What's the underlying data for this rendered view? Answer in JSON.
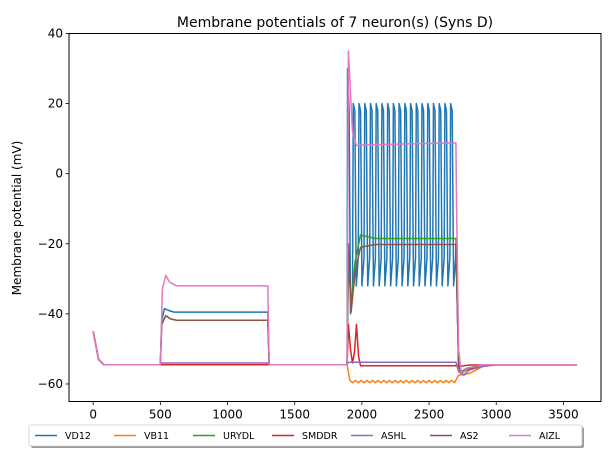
{
  "chart_data": {
    "type": "line",
    "title": "Membrane potentials of 7 neuron(s) (Syns D)",
    "xlabel": "",
    "ylabel": "Membrane potential (mV)",
    "xlim": [
      -180,
      3780
    ],
    "ylim": [
      -65,
      40
    ],
    "xticks": [
      0,
      500,
      1000,
      1500,
      2000,
      2500,
      3000,
      3500
    ],
    "yticks": [
      -60,
      -40,
      -20,
      0,
      20,
      40
    ],
    "grid": false,
    "legend_position": "bottom",
    "series": [
      {
        "name": "VD12",
        "color": "#1f77b4",
        "points": [
          [
            0,
            -45
          ],
          [
            40,
            -53
          ],
          [
            80,
            -54.5
          ],
          [
            500,
            -54.5
          ],
          [
            510,
            -42
          ],
          [
            530,
            -38.5
          ],
          [
            560,
            -39
          ],
          [
            600,
            -39.5
          ],
          [
            1300,
            -39.5
          ],
          [
            1310,
            -54.5
          ],
          [
            1890,
            -54.5
          ]
        ],
        "osc": {
          "start": 1890,
          "end": 2700,
          "count": 19,
          "high": 20,
          "low": -32,
          "firstLow": -40
        },
        "tail": [
          [
            2700,
            -20
          ],
          [
            2720,
            -54.5
          ],
          [
            2740,
            -56.5
          ],
          [
            2790,
            -55.5
          ],
          [
            2900,
            -54.5
          ],
          [
            3600,
            -54.5
          ]
        ]
      },
      {
        "name": "VB11",
        "color": "#ff7f0e",
        "points": [
          [
            0,
            -45
          ],
          [
            40,
            -53
          ],
          [
            80,
            -54.5
          ],
          [
            1890,
            -54.5
          ],
          [
            1900,
            -59.5
          ],
          [
            2700,
            -59.5
          ],
          [
            2720,
            -57.5
          ],
          [
            2800,
            -57
          ],
          [
            2900,
            -55
          ],
          [
            3000,
            -54.5
          ],
          [
            3600,
            -54.5
          ]
        ],
        "ripple": {
          "start": 1900,
          "end": 2700,
          "count": 19,
          "amp": 0.5
        }
      },
      {
        "name": "URYDL",
        "color": "#2ca02c",
        "points": [
          [
            0,
            -45
          ],
          [
            40,
            -53
          ],
          [
            80,
            -54.5
          ],
          [
            500,
            -54.5
          ],
          [
            510,
            -43
          ],
          [
            540,
            -40.5
          ],
          [
            580,
            -41.5
          ],
          [
            620,
            -41.8
          ],
          [
            1300,
            -41.8
          ],
          [
            1310,
            -54.5
          ],
          [
            1890,
            -54.5
          ],
          [
            1900,
            -24
          ],
          [
            1920,
            -38
          ],
          [
            1950,
            -25
          ],
          [
            1990,
            -17.5
          ],
          [
            2100,
            -18.5
          ],
          [
            2700,
            -18.5
          ],
          [
            2720,
            -55
          ],
          [
            2740,
            -56.5
          ],
          [
            2780,
            -55.5
          ],
          [
            2900,
            -54.5
          ],
          [
            3600,
            -54.5
          ]
        ]
      },
      {
        "name": "SMDDR",
        "color": "#d62728",
        "points": [
          [
            0,
            -45
          ],
          [
            40,
            -53
          ],
          [
            80,
            -54.5
          ],
          [
            1890,
            -54.5
          ],
          [
            1900,
            -43
          ],
          [
            1915,
            -50
          ],
          [
            1930,
            -54
          ],
          [
            1945,
            -51
          ],
          [
            1960,
            -43
          ],
          [
            1975,
            -52
          ],
          [
            1990,
            -54.8
          ],
          [
            2700,
            -54.8
          ],
          [
            2720,
            -55
          ],
          [
            2800,
            -54.6
          ],
          [
            3600,
            -54.6
          ]
        ]
      },
      {
        "name": "ASHL",
        "color": "#9467bd",
        "points": [
          [
            0,
            -45
          ],
          [
            40,
            -53
          ],
          [
            80,
            -54.5
          ],
          [
            500,
            -54.5
          ],
          [
            510,
            -54
          ],
          [
            1300,
            -54
          ],
          [
            1310,
            -54.5
          ],
          [
            1890,
            -54.5
          ],
          [
            1900,
            -53.8
          ],
          [
            2700,
            -53.8
          ],
          [
            2720,
            -56.5
          ],
          [
            2760,
            -57.5
          ],
          [
            2800,
            -56
          ],
          [
            2900,
            -55
          ],
          [
            3000,
            -54.5
          ],
          [
            3600,
            -54.5
          ]
        ]
      },
      {
        "name": "AS2",
        "color": "#8c564b",
        "points": [
          [
            0,
            -45
          ],
          [
            40,
            -53
          ],
          [
            80,
            -54.5
          ],
          [
            500,
            -54.5
          ],
          [
            510,
            -43
          ],
          [
            540,
            -40.5
          ],
          [
            580,
            -41.5
          ],
          [
            620,
            -41.8
          ],
          [
            1300,
            -41.8
          ],
          [
            1310,
            -54.5
          ],
          [
            1890,
            -54.5
          ],
          [
            1900,
            -20
          ],
          [
            1920,
            -39.5
          ],
          [
            1950,
            -28
          ],
          [
            1990,
            -21
          ],
          [
            2100,
            -20.2
          ],
          [
            2700,
            -20.2
          ],
          [
            2720,
            -55
          ],
          [
            2740,
            -57
          ],
          [
            2780,
            -56
          ],
          [
            2900,
            -54.5
          ],
          [
            3600,
            -54.5
          ]
        ]
      },
      {
        "name": "AIZL",
        "color": "#e377c2",
        "points": [
          [
            0,
            -45
          ],
          [
            40,
            -53
          ],
          [
            80,
            -54.5
          ],
          [
            500,
            -54.5
          ],
          [
            515,
            -33
          ],
          [
            540,
            -29
          ],
          [
            570,
            -31
          ],
          [
            620,
            -32
          ],
          [
            1300,
            -32
          ],
          [
            1310,
            -54.5
          ],
          [
            1890,
            -54.5
          ],
          [
            1900,
            35
          ],
          [
            1930,
            12
          ],
          [
            1960,
            8
          ],
          [
            2000,
            8.2
          ],
          [
            2700,
            8.8
          ],
          [
            2705,
            -9
          ],
          [
            2720,
            -50
          ],
          [
            2740,
            -57
          ],
          [
            2790,
            -55.5
          ],
          [
            2900,
            -54.5
          ],
          [
            3600,
            -54.5
          ]
        ]
      }
    ]
  }
}
